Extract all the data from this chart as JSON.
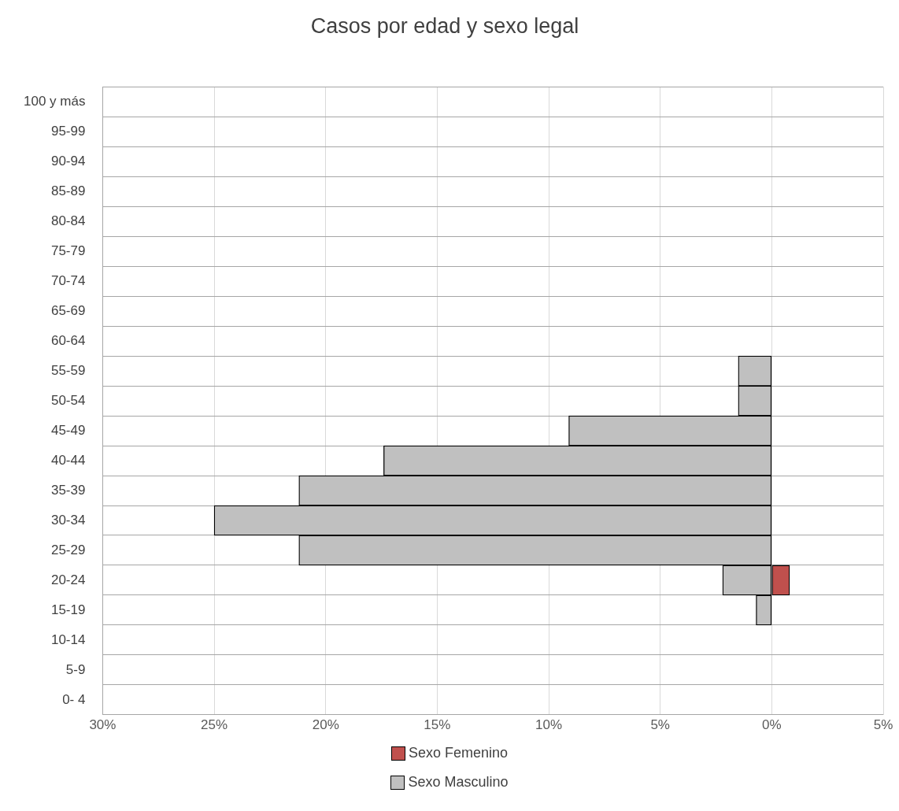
{
  "chart_data": {
    "type": "bar",
    "orientation": "horizontal",
    "stacked": true,
    "title": "Casos por edad y sexo legal",
    "categories": [
      "100 y más",
      "95-99",
      "90-94",
      "85-89",
      "80-84",
      "75-79",
      "70-74",
      "65-69",
      "60-64",
      "55-59",
      "50-54",
      "45-49",
      "40-44",
      "35-39",
      "30-34",
      "25-29",
      "20-24",
      "15-19",
      "10-14",
      "5-9",
      "0- 4"
    ],
    "series": [
      {
        "name": "Sexo Femenino",
        "color": "#c0504d",
        "values": [
          null,
          null,
          null,
          null,
          null,
          null,
          null,
          null,
          null,
          null,
          null,
          null,
          null,
          null,
          null,
          null,
          0.8,
          null,
          null,
          null,
          null
        ]
      },
      {
        "name": "Sexo Masculino",
        "color": "#c0c0c0",
        "values": [
          null,
          null,
          null,
          null,
          null,
          null,
          null,
          null,
          null,
          -1.5,
          -1.5,
          -9.1,
          -17.4,
          -21.2,
          -25,
          -21.2,
          -2.2,
          -0.7,
          null,
          null,
          null
        ]
      }
    ],
    "xlim": [
      -30,
      5
    ],
    "xticks": [
      {
        "value": -30,
        "label": "30%"
      },
      {
        "value": -25,
        "label": "25%"
      },
      {
        "value": -20,
        "label": "20%"
      },
      {
        "value": -15,
        "label": "15%"
      },
      {
        "value": -10,
        "label": "10%"
      },
      {
        "value": -5,
        "label": "5%"
      },
      {
        "value": 0,
        "label": "0%"
      },
      {
        "value": 5,
        "label": "5%"
      }
    ],
    "grid": true,
    "legend": "bottom"
  }
}
